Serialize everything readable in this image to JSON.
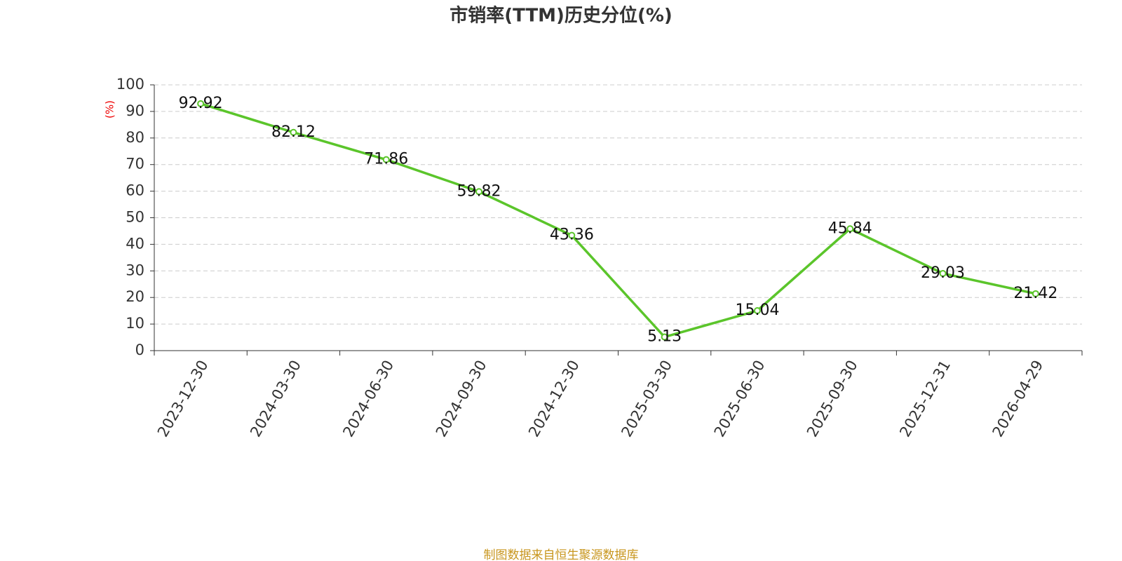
{
  "chart_data": {
    "type": "line",
    "title": "市销率(TTM)历史分位(%)",
    "y_label": "(%)",
    "categories": [
      "2023-12-30",
      "2024-03-30",
      "2024-06-30",
      "2024-09-30",
      "2024-12-30",
      "2025-03-30",
      "2025-06-30",
      "2025-09-30",
      "2025-12-31",
      "2026-04-29"
    ],
    "values": [
      92.92,
      82.12,
      71.86,
      59.82,
      43.36,
      5.13,
      15.04,
      45.84,
      29.03,
      21.42
    ],
    "color": "#5bc52b",
    "ylim": [
      0,
      100
    ],
    "yticks": [
      0,
      10,
      20,
      30,
      40,
      50,
      60,
      70,
      80,
      90,
      100
    ],
    "grid": true,
    "source": "制图数据来自恒生聚源数据库"
  }
}
